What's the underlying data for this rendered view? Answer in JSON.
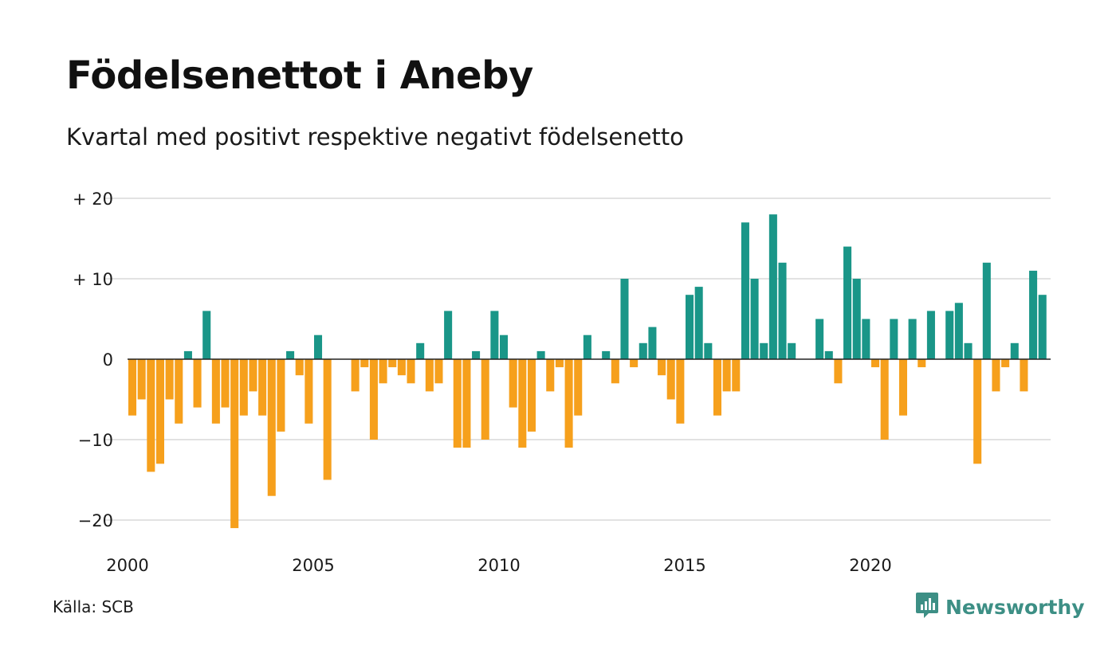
{
  "header": {
    "title": "Födelsenettot i Aneby",
    "subtitle": "Kvartal med positivt respektive negativt födelsenetto"
  },
  "footer": {
    "source": "Källa: SCB",
    "brand": "Newsworthy"
  },
  "colors": {
    "positive": "#1a9688",
    "negative": "#f6a01c",
    "grid": "#e2e2e2",
    "zero_line": "#222222",
    "brand": "#3d8f85"
  },
  "icons": {
    "brand_logo": "newsworthy-chart-bubble-icon"
  },
  "chart_data": {
    "type": "bar",
    "title": "Födelsenettot i Aneby",
    "subtitle": "Kvartal med positivt respektive negativt födelsenetto",
    "xlabel": "",
    "ylabel": "",
    "ylim": [
      -23,
      20
    ],
    "y_ticks": [
      {
        "value": 20,
        "label": "+ 20"
      },
      {
        "value": 10,
        "label": "+ 10"
      },
      {
        "value": 0,
        "label": "0"
      },
      {
        "value": -10,
        "label": "−10"
      },
      {
        "value": -20,
        "label": "−20"
      }
    ],
    "x_ticks": [
      {
        "year": 2000,
        "label": "2000"
      },
      {
        "year": 2005,
        "label": "2005"
      },
      {
        "year": 2010,
        "label": "2010"
      },
      {
        "year": 2015,
        "label": "2015"
      },
      {
        "year": 2020,
        "label": "2020"
      }
    ],
    "start_quarter": "2000 K1",
    "grid": true,
    "legend": "none",
    "values": [
      -7,
      -5,
      -14,
      -13,
      -5,
      -8,
      1,
      -6,
      6,
      -8,
      -6,
      -21,
      -7,
      -4,
      -7,
      -17,
      -9,
      1,
      -2,
      -8,
      3,
      -15,
      0,
      0,
      -4,
      -1,
      -10,
      -3,
      -1,
      -2,
      -3,
      2,
      -4,
      -3,
      6,
      -11,
      -11,
      1,
      -10,
      6,
      3,
      -6,
      -11,
      -9,
      1,
      -4,
      -1,
      -11,
      -7,
      3,
      0,
      1,
      -3,
      10,
      -1,
      2,
      4,
      -2,
      -5,
      -8,
      8,
      9,
      2,
      -7,
      -4,
      -4,
      17,
      10,
      2,
      18,
      12,
      2,
      0,
      0,
      5,
      1,
      -3,
      14,
      10,
      5,
      -1,
      -10,
      5,
      -7,
      5,
      -1,
      6,
      0,
      6,
      7,
      2,
      -13,
      12,
      -4,
      -1,
      2,
      -4,
      11,
      8
    ]
  }
}
